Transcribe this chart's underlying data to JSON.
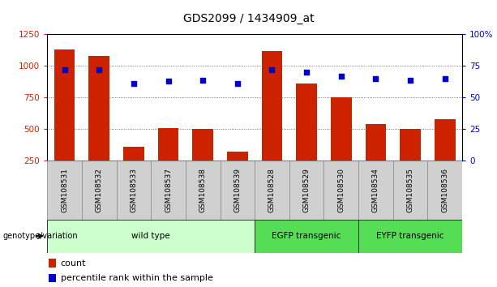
{
  "title": "GDS2099 / 1434909_at",
  "samples": [
    "GSM108531",
    "GSM108532",
    "GSM108533",
    "GSM108537",
    "GSM108538",
    "GSM108539",
    "GSM108528",
    "GSM108529",
    "GSM108530",
    "GSM108534",
    "GSM108535",
    "GSM108536"
  ],
  "counts": [
    1130,
    1080,
    360,
    510,
    500,
    320,
    1120,
    860,
    750,
    540,
    500,
    580
  ],
  "percentiles": [
    72,
    72,
    61,
    63,
    64,
    61,
    72,
    70,
    67,
    65,
    64,
    65
  ],
  "bar_color": "#cc2200",
  "dot_color": "#0000cc",
  "left_ylim": [
    250,
    1250
  ],
  "left_yticks": [
    250,
    500,
    750,
    1000,
    1250
  ],
  "right_ylim": [
    0,
    100
  ],
  "right_yticks": [
    0,
    25,
    50,
    75,
    100
  ],
  "right_yticklabels": [
    "0",
    "25",
    "50",
    "75",
    "100%"
  ],
  "groups": [
    {
      "label": "wild type",
      "start": 0,
      "end": 6,
      "color": "#ccffcc"
    },
    {
      "label": "EGFP transgenic",
      "start": 6,
      "end": 9,
      "color": "#55dd55"
    },
    {
      "label": "EYFP transgenic",
      "start": 9,
      "end": 12,
      "color": "#55dd55"
    }
  ],
  "group_label": "genotype/variation",
  "legend_count_label": "count",
  "legend_pct_label": "percentile rank within the sample",
  "grid_color": "#555555",
  "background_color": "#ffffff",
  "label_color_left": "#cc2200",
  "label_color_right": "#0000cc"
}
